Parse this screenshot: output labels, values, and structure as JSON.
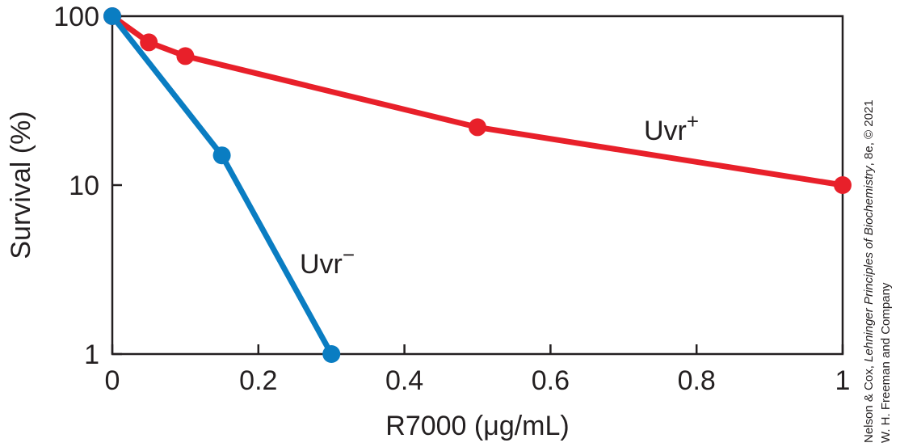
{
  "chart_data": {
    "type": "line",
    "xlabel": "R7000 (μg/mL)",
    "ylabel": "Survival (%)",
    "xlim": [
      0,
      1
    ],
    "ylim": [
      1,
      100
    ],
    "yscale": "log",
    "xticks": [
      0,
      0.2,
      0.4,
      0.6,
      0.8,
      1
    ],
    "xtick_labels": [
      "0",
      "0.2",
      "0.4",
      "0.6",
      "0.8",
      "1"
    ],
    "yticks": [
      1,
      10,
      100
    ],
    "ytick_labels": [
      "1",
      "10",
      "100"
    ],
    "grid": false,
    "series": [
      {
        "name": "Uvr",
        "name_sup": "+",
        "color": "#e8202a",
        "x": [
          0,
          0.05,
          0.1,
          0.5,
          1
        ],
        "y": [
          100,
          70,
          58,
          22,
          10
        ]
      },
      {
        "name": "Uvr",
        "name_sup": "−",
        "color": "#0a7dc2",
        "x": [
          0,
          0.15,
          0.3
        ],
        "y": [
          100,
          15,
          1
        ]
      }
    ]
  },
  "credit": {
    "line1_prefix": "Nelson & Cox, ",
    "line1_italic": "Lehninger Principles of Biochemistry",
    "line1_suffix": ", 8e, © 2021",
    "line2": "W. H. Freeman and Company"
  }
}
